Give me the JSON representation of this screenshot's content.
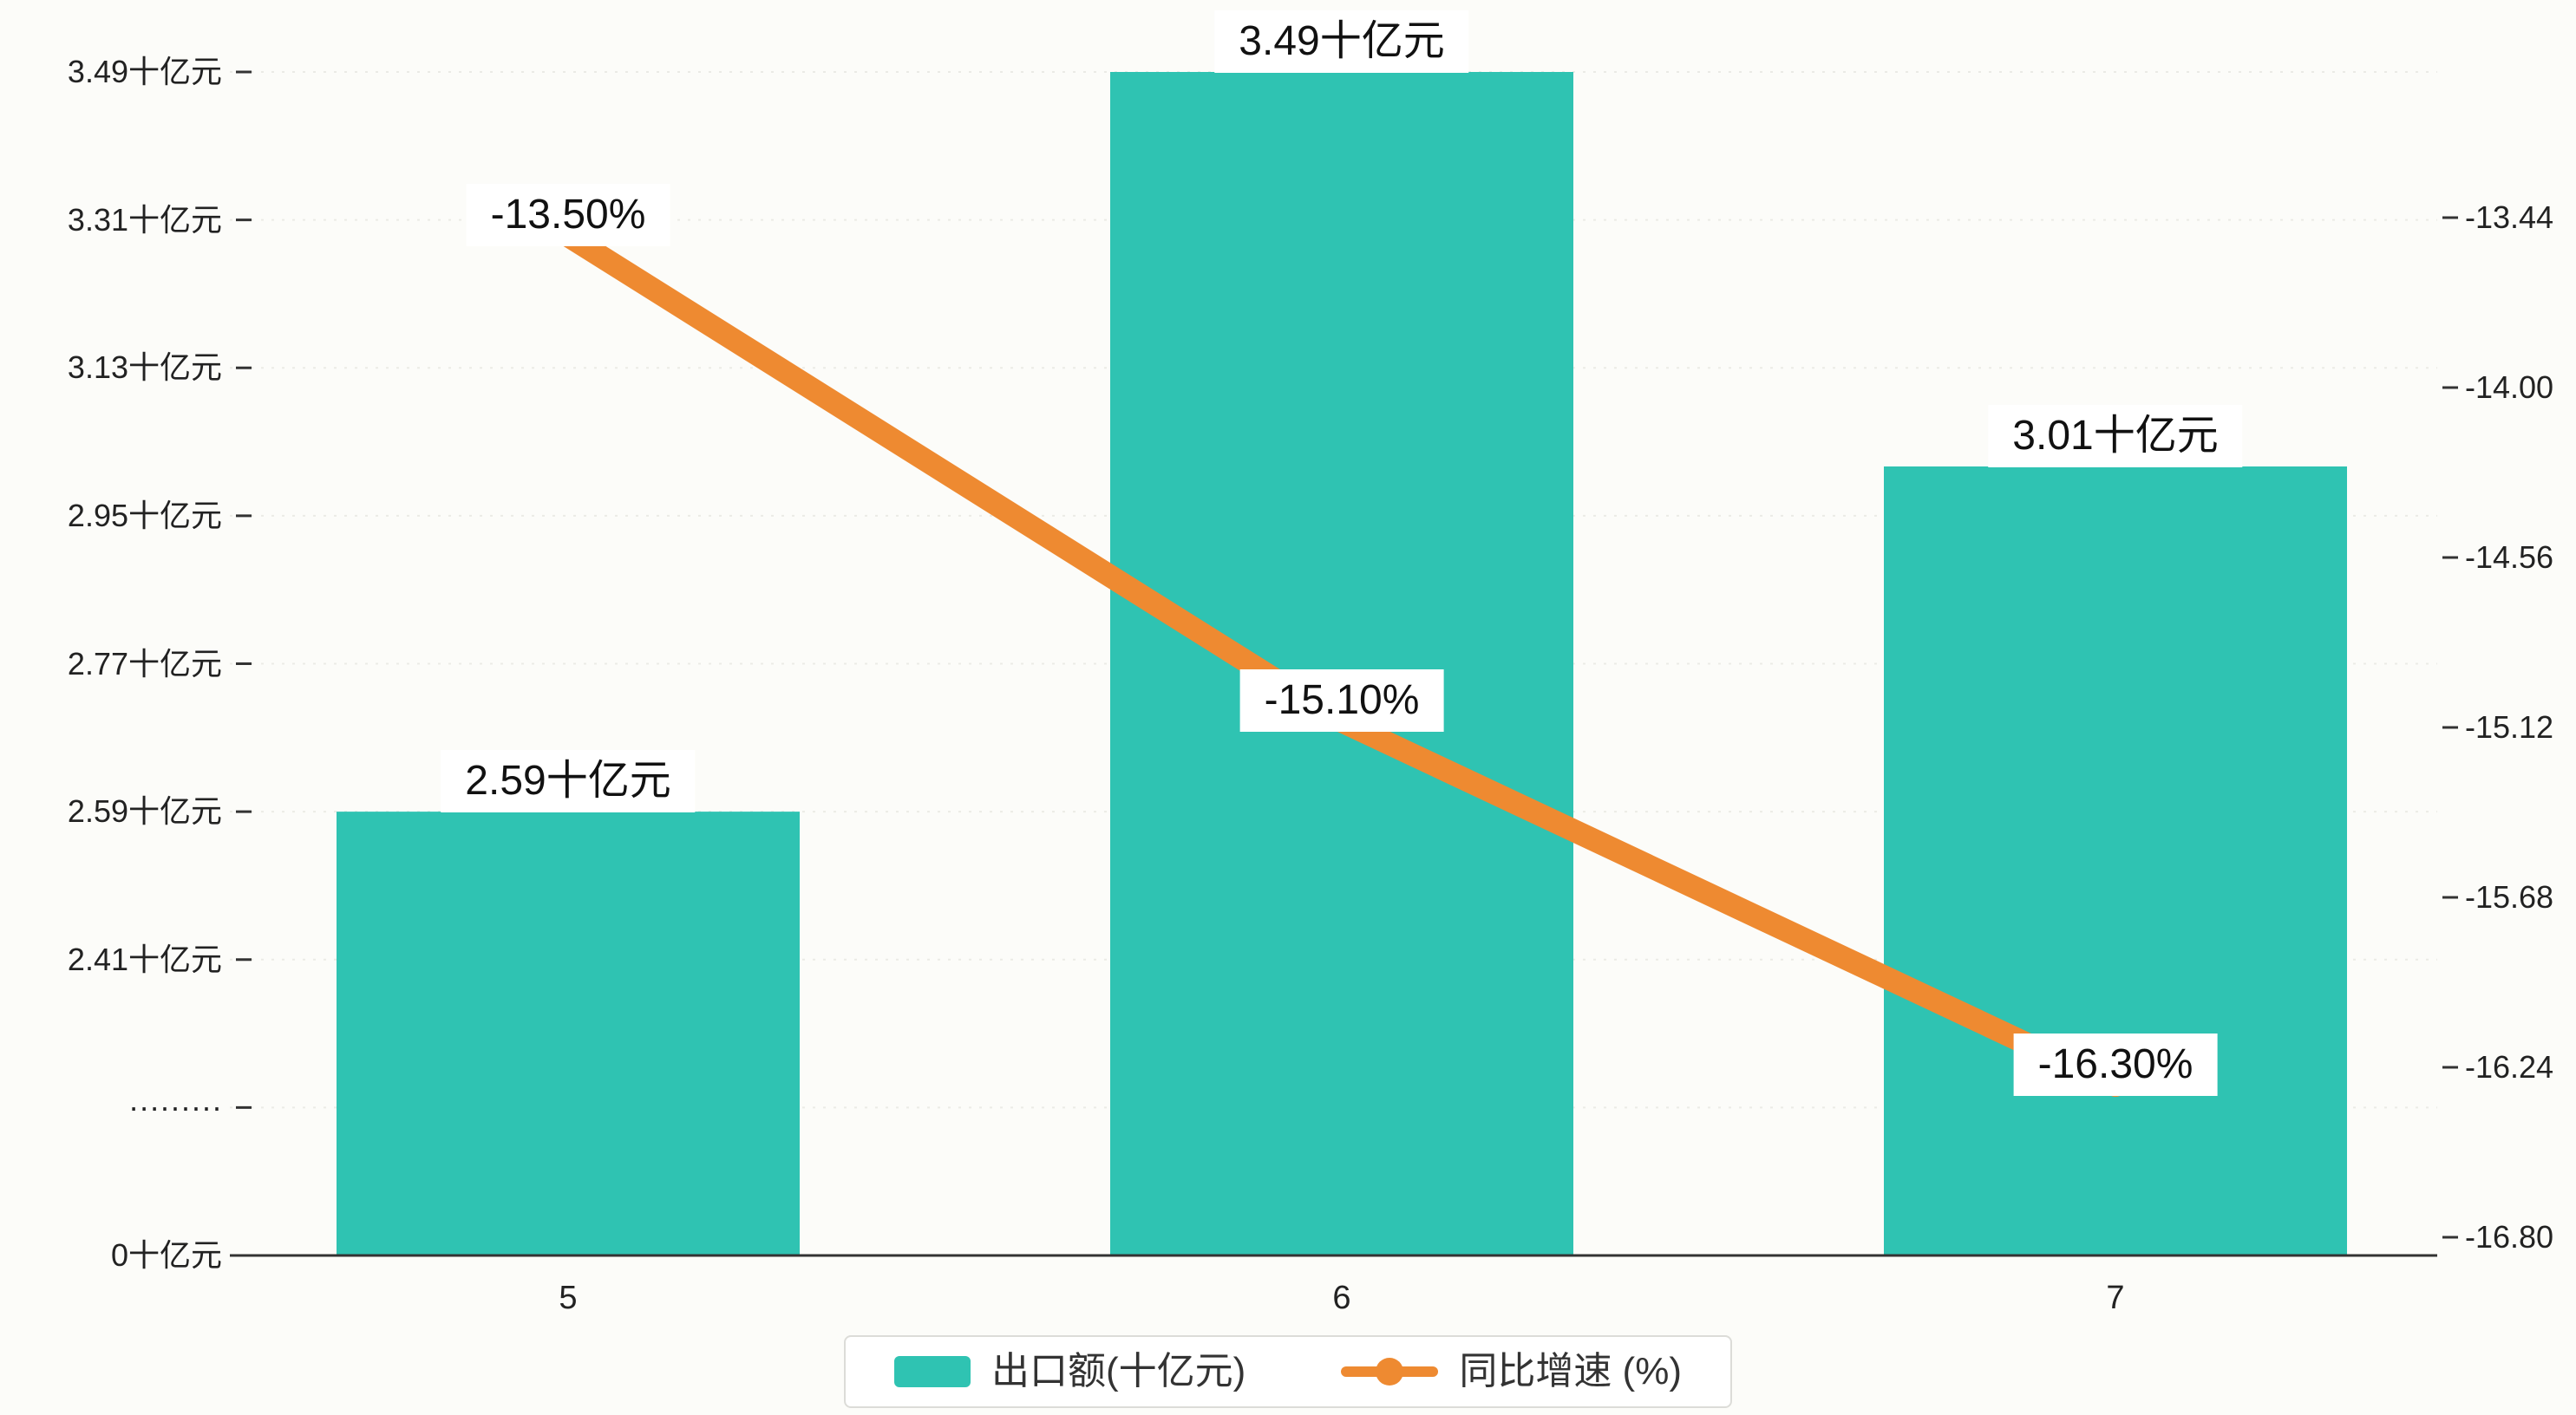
{
  "page": {
    "background": "#fcfcf9"
  },
  "chart_data": {
    "type": "bar",
    "categories": [
      "5",
      "6",
      "7"
    ],
    "series": [
      {
        "name": "出口额(十亿元)",
        "type": "bar",
        "color": "#2fc3b2",
        "values": [
          2.59,
          3.49,
          3.01
        ],
        "data_labels": [
          "2.59十亿元",
          "3.49十亿元",
          "3.01十亿元"
        ]
      },
      {
        "name": "同比增速 (%)",
        "type": "line",
        "color": "#ee8a31",
        "values": [
          -13.5,
          -15.1,
          -16.3
        ],
        "data_labels": [
          "-13.50%",
          "-15.10%",
          "-16.30%"
        ]
      }
    ],
    "left_axis": {
      "unit": "十亿元",
      "tick_labels": [
        "3.49十亿元",
        "3.31十亿元",
        "3.13十亿元",
        "2.95十亿元",
        "2.77十亿元",
        "2.59十亿元",
        "2.41十亿元",
        "·········",
        "0十亿元"
      ],
      "tick_values": [
        3.49,
        3.31,
        3.13,
        2.95,
        2.77,
        2.59,
        2.41,
        null,
        0
      ],
      "broken_axis": true
    },
    "right_axis": {
      "tick_labels": [
        "-13.44",
        "-14.00",
        "-14.56",
        "-15.12",
        "-15.68",
        "-16.24",
        "-16.80"
      ],
      "max": -13.44,
      "min": -16.8
    },
    "x_axis": {
      "tick_labels": [
        "5",
        "6",
        "7"
      ]
    },
    "legend": {
      "position": "bottom",
      "items": [
        {
          "label": "出口额(十亿元)",
          "marker": "bar",
          "color": "#2fc3b2"
        },
        {
          "label": "同比增速 (%)",
          "marker": "line-dot",
          "color": "#ee8a31"
        }
      ]
    },
    "grid": true,
    "title": "",
    "xlabel": "",
    "ylabel_left": "十亿元",
    "ylabel_right": "%"
  }
}
